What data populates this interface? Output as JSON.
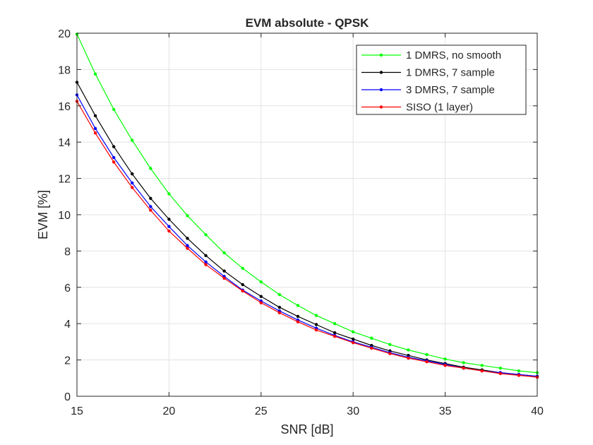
{
  "chart_data": {
    "type": "line",
    "title": "EVM absolute - QPSK",
    "xlabel": "SNR [dB]",
    "ylabel": "EVM [%]",
    "xlim": [
      15,
      40
    ],
    "ylim": [
      0,
      20
    ],
    "xticks": [
      15,
      20,
      25,
      30,
      35,
      40
    ],
    "yticks": [
      0,
      2,
      4,
      6,
      8,
      10,
      12,
      14,
      16,
      18,
      20
    ],
    "grid": true,
    "legend_position": "top-right",
    "x": [
      15,
      16,
      17,
      18,
      19,
      20,
      21,
      22,
      23,
      24,
      25,
      26,
      27,
      28,
      29,
      30,
      31,
      32,
      33,
      34,
      35,
      36,
      37,
      38,
      39,
      40
    ],
    "series": [
      {
        "name": "1 DMRS, no smooth",
        "color": "#00ff00",
        "marker": "dot",
        "values": [
          19.95,
          17.75,
          15.8,
          14.1,
          12.55,
          11.15,
          9.95,
          8.9,
          7.9,
          7.05,
          6.3,
          5.6,
          5.0,
          4.45,
          4.0,
          3.55,
          3.2,
          2.85,
          2.55,
          2.3,
          2.05,
          1.85,
          1.7,
          1.55,
          1.4,
          1.3
        ]
      },
      {
        "name": "1 DMRS, 7 sample",
        "color": "#000000",
        "marker": "dot",
        "values": [
          17.3,
          15.45,
          13.75,
          12.25,
          10.9,
          9.75,
          8.7,
          7.75,
          6.9,
          6.15,
          5.5,
          4.9,
          4.4,
          3.95,
          3.5,
          3.15,
          2.8,
          2.5,
          2.25,
          2.0,
          1.8,
          1.6,
          1.45,
          1.3,
          1.2,
          1.1
        ]
      },
      {
        "name": "3 DMRS, 7 sample",
        "color": "#0000ff",
        "marker": "dot",
        "values": [
          16.6,
          14.75,
          13.15,
          11.75,
          10.45,
          9.35,
          8.3,
          7.4,
          6.6,
          5.85,
          5.25,
          4.7,
          4.2,
          3.75,
          3.35,
          3.0,
          2.7,
          2.4,
          2.15,
          1.95,
          1.75,
          1.55,
          1.4,
          1.3,
          1.2,
          1.1
        ]
      },
      {
        "name": "SISO (1 layer)",
        "color": "#ff0000",
        "marker": "dot",
        "values": [
          16.25,
          14.5,
          12.9,
          11.5,
          10.25,
          9.1,
          8.15,
          7.25,
          6.5,
          5.8,
          5.15,
          4.6,
          4.1,
          3.65,
          3.3,
          2.95,
          2.65,
          2.35,
          2.1,
          1.9,
          1.7,
          1.55,
          1.4,
          1.25,
          1.15,
          1.05
        ]
      }
    ]
  }
}
